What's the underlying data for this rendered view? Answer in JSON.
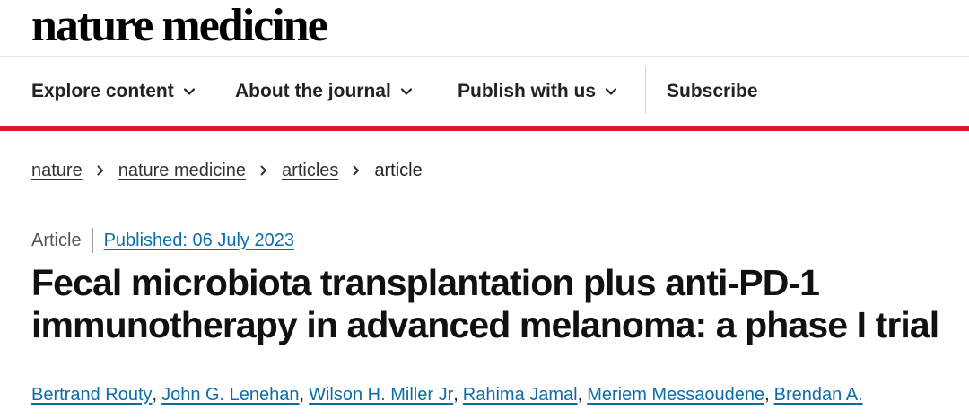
{
  "header": {
    "logo_text": "nature medicine"
  },
  "nav": {
    "items": [
      {
        "label": "Explore content",
        "icon": "chevron-down-icon"
      },
      {
        "label": "About the journal",
        "icon": "chevron-down-icon"
      },
      {
        "label": "Publish with us",
        "icon": "chevron-down-icon"
      }
    ],
    "subscribe_label": "Subscribe"
  },
  "colors": {
    "accent_red": "#e0142b",
    "link_blue": "#0b6ea8"
  },
  "breadcrumb": {
    "items": [
      "nature",
      "nature medicine",
      "articles"
    ],
    "current": "article"
  },
  "article": {
    "type": "Article",
    "published": "Published: 06 July 2023",
    "title": "Fecal microbiota transplantation plus anti-PD-1 immunotherapy in advanced melanoma: a phase I trial",
    "authors": [
      "Bertrand Routy",
      "John G. Lenehan",
      "Wilson H. Miller Jr",
      "Rahima Jamal",
      "Meriem Messaoudene",
      "Brendan A."
    ],
    "author_separator": ","
  }
}
